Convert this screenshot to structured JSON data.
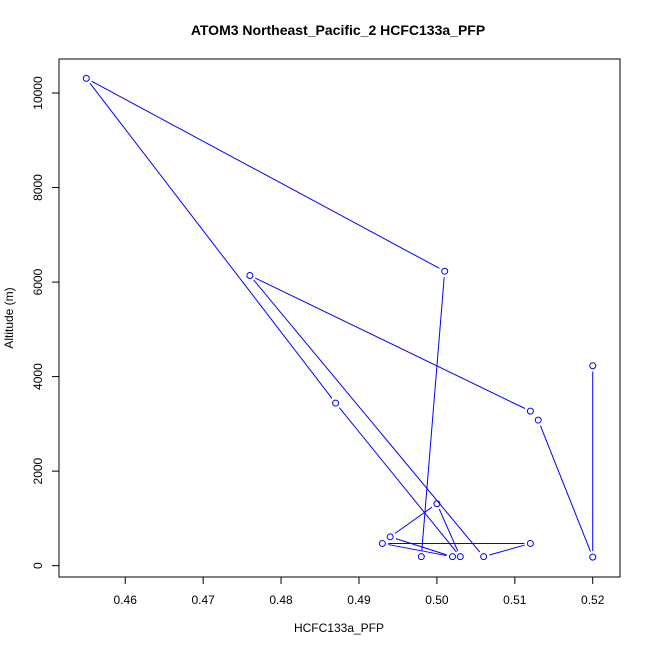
{
  "chart_data": {
    "type": "line",
    "title": "ATOM3 Northeast_Pacific_2 HCFC133a_PFP",
    "xlabel": "HCFC133a_PFP",
    "ylabel": "Altitude (m)",
    "xlim": [
      0.4515,
      0.5235
    ],
    "ylim": [
      -240,
      10720
    ],
    "x_ticks": [
      0.46,
      0.47,
      0.48,
      0.49,
      0.5,
      0.51,
      0.52
    ],
    "x_tick_labels": [
      "0.46",
      "0.47",
      "0.48",
      "0.49",
      "0.50",
      "0.51",
      "0.52"
    ],
    "y_ticks": [
      0,
      2000,
      4000,
      6000,
      8000,
      10000
    ],
    "y_tick_labels": [
      "0",
      "2000",
      "4000",
      "6000",
      "8000",
      "10000"
    ],
    "grid": false,
    "markers": "open-circle",
    "line_color": "#0000ff",
    "series": [
      {
        "x": [
          0.52,
          0.52,
          0.513,
          0.512,
          0.476,
          0.506,
          0.512,
          0.493,
          0.502,
          0.494,
          0.5,
          0.503,
          0.487,
          0.455,
          0.501,
          0.498
        ],
        "y": [
          4230,
          180,
          3080,
          3270,
          6140,
          190,
          470,
          470,
          190,
          610,
          1310,
          190,
          3440,
          10310,
          6230,
          190
        ]
      }
    ]
  }
}
